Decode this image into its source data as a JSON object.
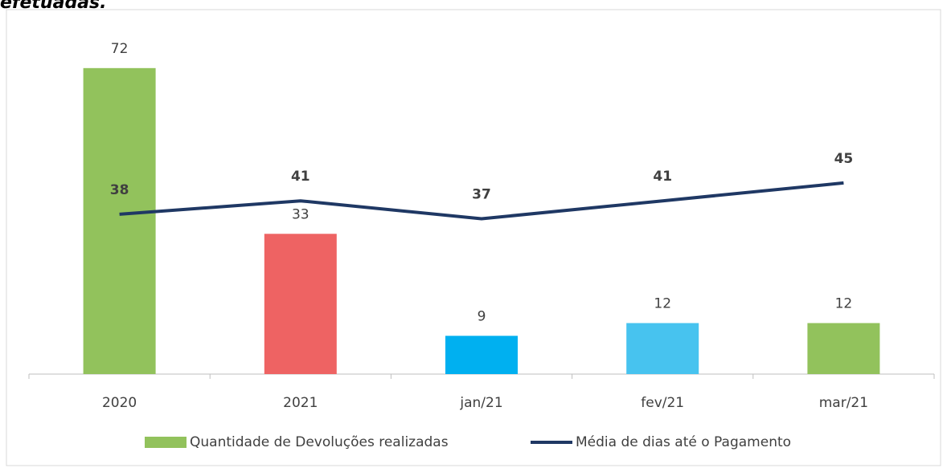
{
  "chart_data": {
    "type": "bar-line",
    "title": "efetuadas.",
    "categories": [
      "2020",
      "2021",
      "jan/21",
      "fev/21",
      "mar/21"
    ],
    "series": [
      {
        "name": "Quantidade de Devoluções realizadas",
        "type": "bar",
        "color": "#92c25c",
        "colors": [
          "#92c25c",
          "#ee6363",
          "#00b0f0",
          "#47c3ef",
          "#92c25c"
        ],
        "values": [
          72,
          33,
          9,
          12,
          12
        ]
      },
      {
        "name": "Média de dias até o Pagamento",
        "type": "line",
        "axis": "y2",
        "color": "#1f3864",
        "values": [
          38,
          41,
          37,
          41,
          45
        ]
      }
    ],
    "ylim": [
      0,
      85
    ],
    "y2lim": [
      2.3,
      83
    ],
    "legend": "bottom"
  }
}
